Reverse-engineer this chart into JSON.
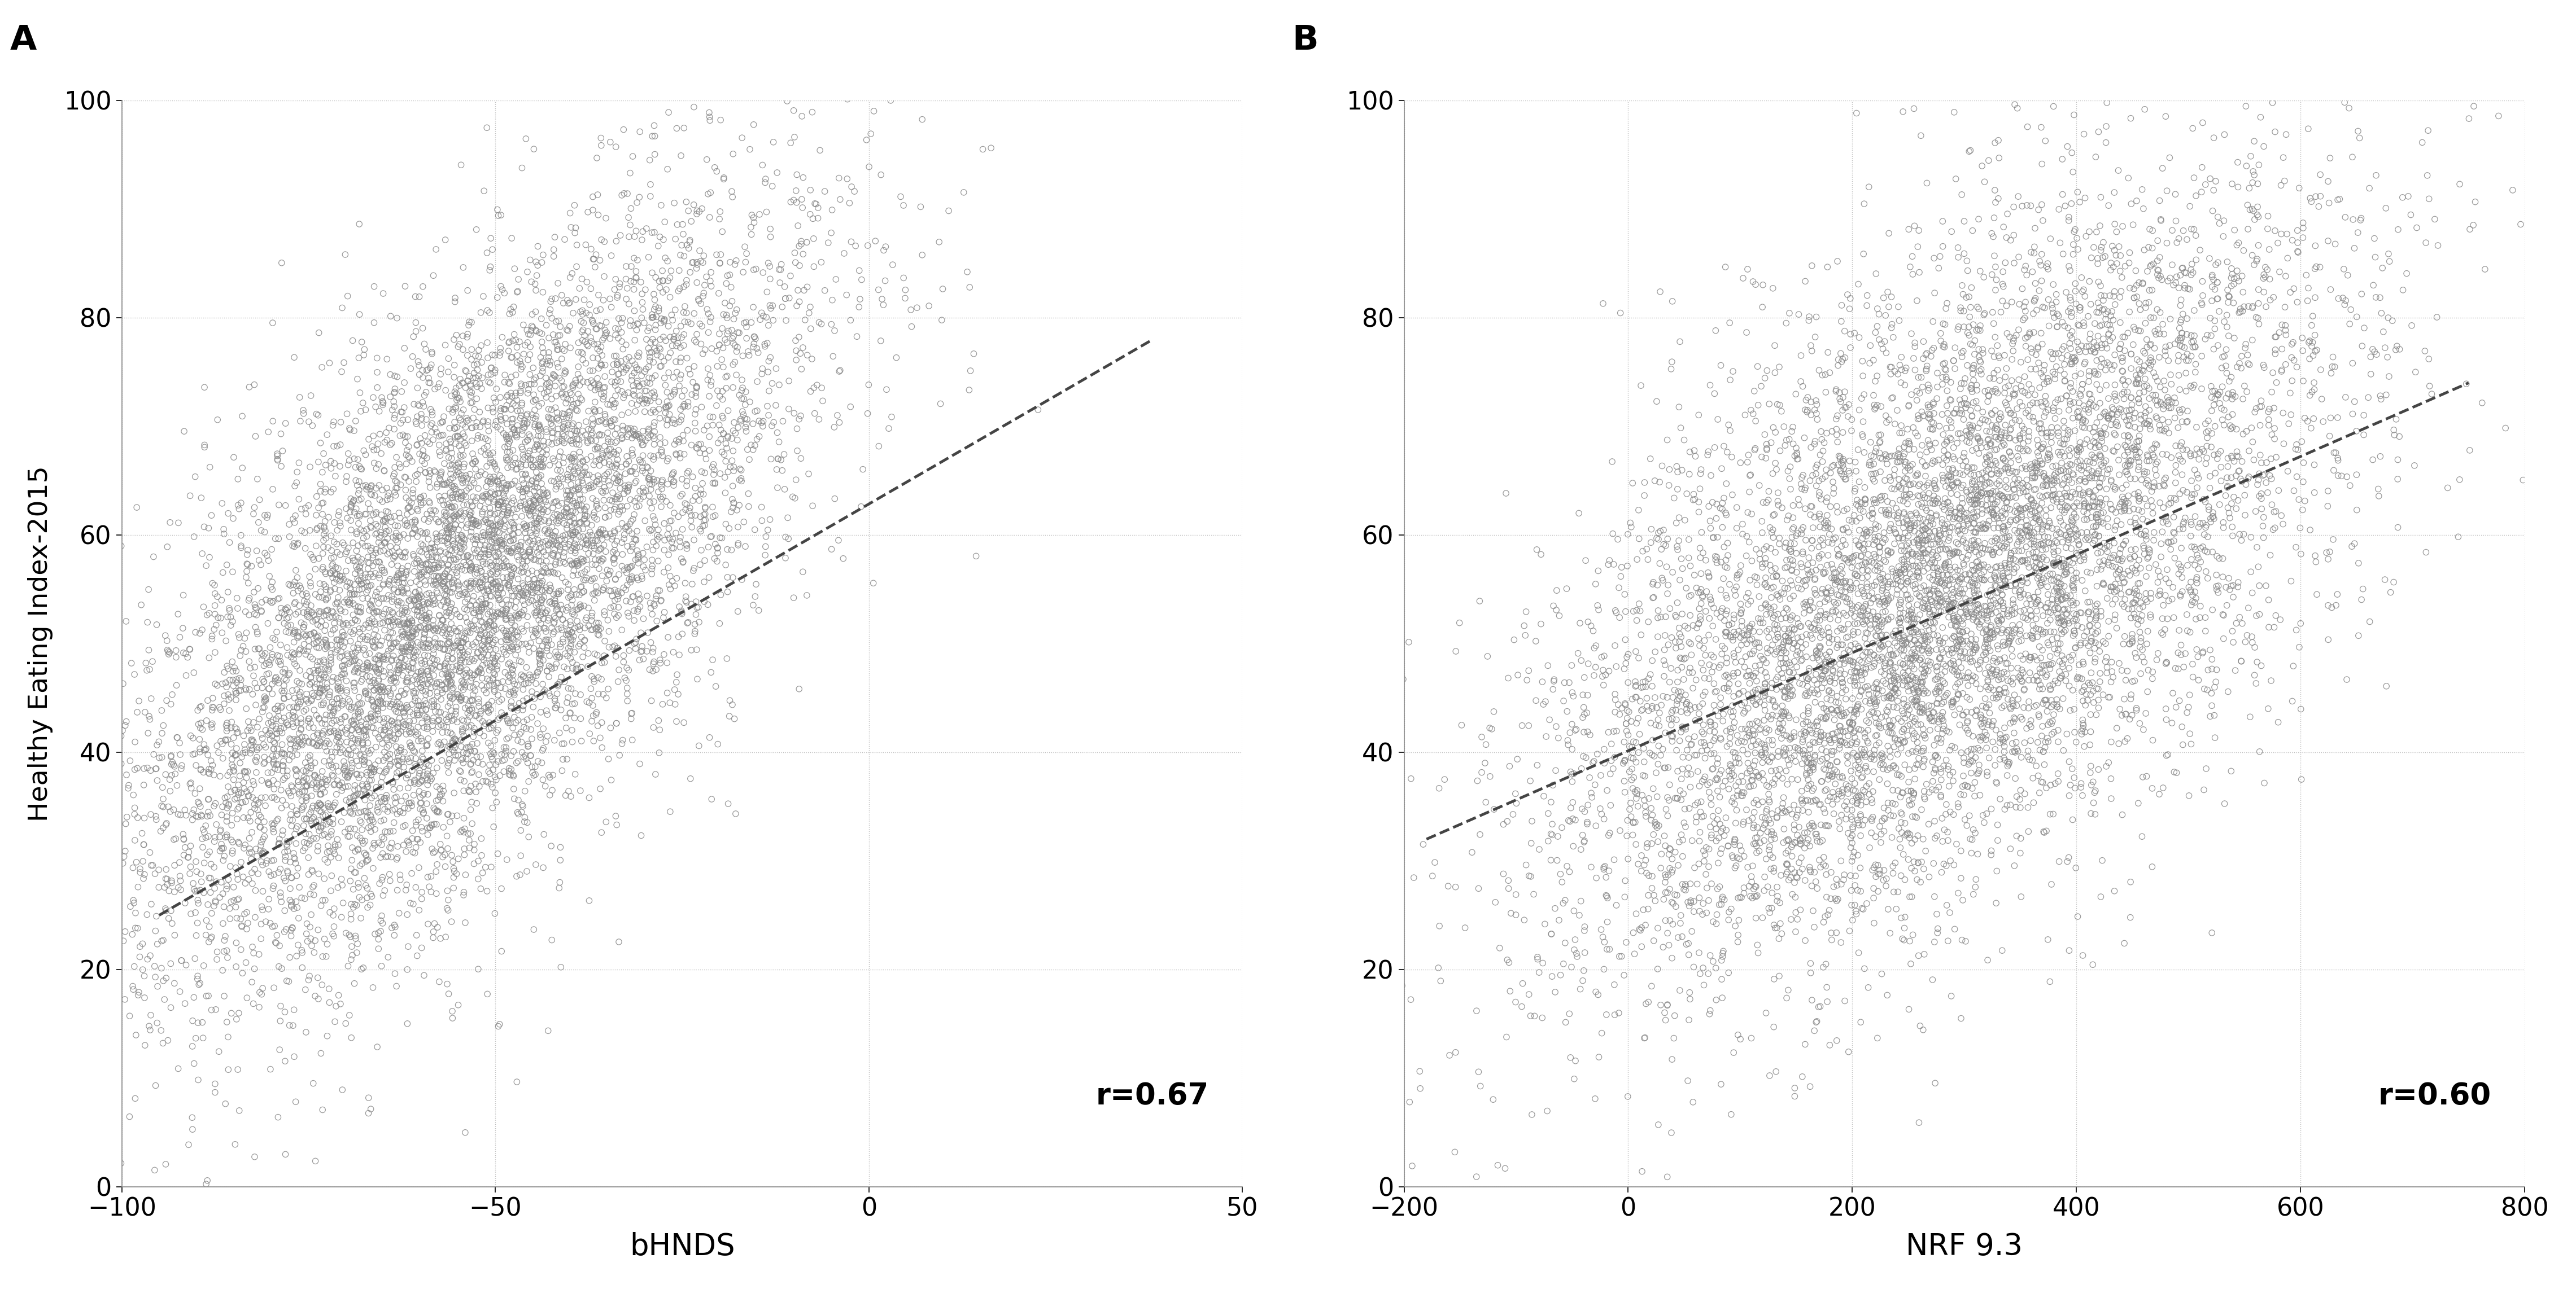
{
  "panel_A": {
    "label": "A",
    "xlabel": "bHNDS",
    "ylabel": "Healthy Eating Index-2015",
    "r_text": "r=0.67",
    "xlim": [
      -100,
      50
    ],
    "ylim": [
      0,
      100
    ],
    "xticks": [
      -100,
      -50,
      0,
      50
    ],
    "yticks": [
      0,
      20,
      40,
      60,
      80,
      100
    ],
    "x_mean": -55,
    "x_std": 22,
    "y_mean": 54,
    "y_std": 17,
    "r": 0.67,
    "n_points": 8000,
    "trend_x": [
      -95,
      38
    ],
    "trend_y": [
      25,
      78
    ],
    "seed": 42
  },
  "panel_B": {
    "label": "B",
    "xlabel": "NRF 9.3",
    "ylabel": "",
    "r_text": "r=0.60",
    "xlim": [
      -200,
      800
    ],
    "ylim": [
      0,
      100
    ],
    "xticks": [
      -200,
      0,
      200,
      400,
      600,
      800
    ],
    "yticks": [
      0,
      20,
      40,
      60,
      80,
      100
    ],
    "x_mean": 280,
    "x_std": 170,
    "y_mean": 55,
    "y_std": 17,
    "r": 0.6,
    "n_points": 8000,
    "trend_x": [
      -180,
      750
    ],
    "trend_y": [
      32,
      74
    ],
    "seed": 123
  },
  "scatter_color": "#888888",
  "scatter_marker": "o",
  "scatter_size": 55,
  "scatter_linewidth": 0.9,
  "trend_color": "#444444",
  "trend_linewidth": 3.5,
  "trend_linestyle": "--",
  "grid_color": "#bbbbbb",
  "grid_linestyle": ":",
  "grid_linewidth": 1.0,
  "background_color": "#ffffff",
  "r_fontsize": 38,
  "tick_fontsize": 32,
  "xlabel_fontsize": 38,
  "ylabel_fontsize": 34,
  "panel_label_fontsize": 44
}
